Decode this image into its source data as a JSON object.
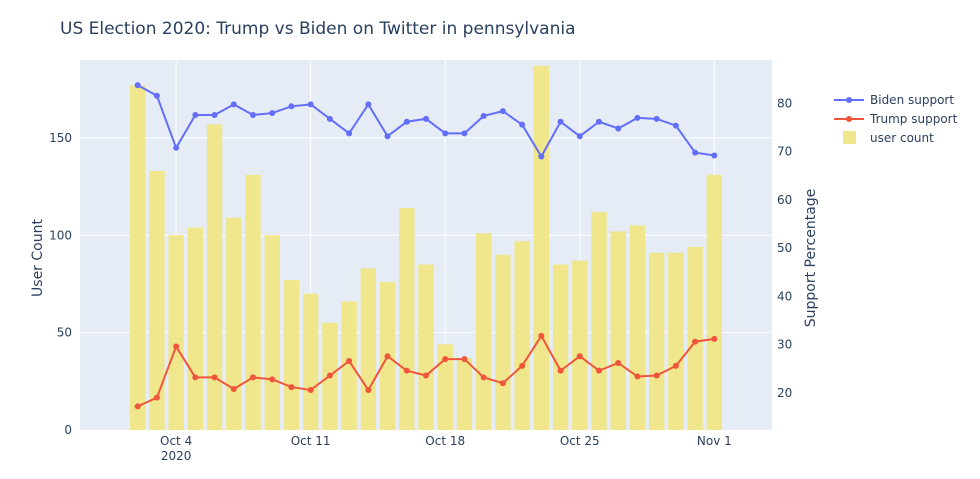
{
  "chart_data": {
    "type": "bar+line",
    "title": "US Election 2020: Trump vs Biden on Twitter in pennsylvania",
    "xlabel": "",
    "y_left_label": "User Count",
    "y_right_label": "Support Percentage",
    "x_ticks": [
      "Oct 4",
      "Oct 11",
      "Oct 18",
      "Oct 25",
      "Nov 1"
    ],
    "x_year_label": "2020",
    "y_left_ticks": [
      "0",
      "50",
      "100",
      "150"
    ],
    "y_right_ticks": [
      "20",
      "30",
      "40",
      "50",
      "60",
      "70",
      "80"
    ],
    "y_left_range": [
      0,
      190
    ],
    "y_right_range": [
      12.3,
      89
    ],
    "dates": [
      "2020-10-02",
      "2020-10-03",
      "2020-10-04",
      "2020-10-05",
      "2020-10-06",
      "2020-10-07",
      "2020-10-08",
      "2020-10-09",
      "2020-10-10",
      "2020-10-11",
      "2020-10-12",
      "2020-10-13",
      "2020-10-14",
      "2020-10-15",
      "2020-10-16",
      "2020-10-17",
      "2020-10-18",
      "2020-10-19",
      "2020-10-20",
      "2020-10-21",
      "2020-10-22",
      "2020-10-23",
      "2020-10-24",
      "2020-10-25",
      "2020-10-26",
      "2020-10-27",
      "2020-10-28",
      "2020-10-29",
      "2020-10-30",
      "2020-10-31",
      "2020-11-01"
    ],
    "series": [
      {
        "name": "user count",
        "kind": "bar",
        "axis": "left",
        "color": "#f0e68c",
        "values": [
          177,
          133,
          100,
          104,
          157,
          109,
          131,
          100,
          77,
          70,
          55,
          66,
          83,
          76,
          114,
          85,
          44,
          37,
          101,
          90,
          97,
          187,
          85,
          87,
          112,
          102,
          105,
          91,
          91,
          94,
          131
        ]
      },
      {
        "name": "Biden support",
        "kind": "line",
        "axis": "right",
        "color": "#636efa",
        "values": [
          83.8,
          81.6,
          70.8,
          77.6,
          77.6,
          79.8,
          77.6,
          78.0,
          79.4,
          79.8,
          76.8,
          73.8,
          79.8,
          73.2,
          76.2,
          76.8,
          73.8,
          73.8,
          77.4,
          78.4,
          75.6,
          69.0,
          76.2,
          73.2,
          76.2,
          74.8,
          77.0,
          76.8,
          75.4,
          69.8,
          69.2
        ]
      },
      {
        "name": "Trump support",
        "kind": "line",
        "axis": "right",
        "color": "#ef553b",
        "values": [
          17.2,
          19.0,
          29.6,
          23.2,
          23.2,
          20.8,
          23.2,
          22.8,
          21.2,
          20.6,
          23.6,
          26.6,
          20.6,
          27.6,
          24.6,
          23.6,
          27.0,
          27.0,
          23.2,
          22.0,
          25.6,
          31.8,
          24.6,
          27.6,
          24.6,
          26.2,
          23.4,
          23.6,
          25.6,
          30.6,
          31.2
        ]
      }
    ]
  },
  "legend": {
    "items": [
      {
        "label": "Biden support",
        "color": "#636efa",
        "kind": "line"
      },
      {
        "label": "Trump support",
        "color": "#ef553b",
        "kind": "line"
      },
      {
        "label": "user count",
        "color": "#f0e68c",
        "kind": "bar"
      }
    ]
  }
}
